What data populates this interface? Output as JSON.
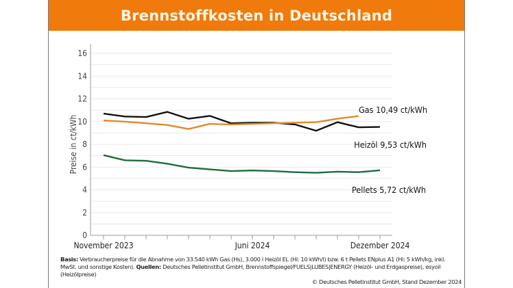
{
  "title": "Brennstoffkosten in Deutschland",
  "chart_data": {
    "type": "line",
    "ylabel": "Preise in ct/kWh",
    "ylim": [
      0,
      16
    ],
    "yticks": [
      0,
      2,
      4,
      6,
      8,
      10,
      12,
      14,
      16
    ],
    "grid": true,
    "x": [
      "2023-11",
      "2023-12",
      "2024-01",
      "2024-02",
      "2024-03",
      "2024-04",
      "2024-05",
      "2024-06",
      "2024-07",
      "2024-08",
      "2024-09",
      "2024-10",
      "2024-11",
      "2024-12"
    ],
    "xtick_labels": [
      {
        "month": "2023-11",
        "label": "November 2023"
      },
      {
        "month": "2024-06",
        "label": "Juni 2024"
      },
      {
        "month": "2024-12",
        "label": "Dezember 2024"
      }
    ],
    "series": [
      {
        "name": "Heizöl",
        "label": "Heizöl  9,53 ct/kWh",
        "color": "#111111",
        "values": [
          10.7,
          10.45,
          10.4,
          10.85,
          10.25,
          10.5,
          9.85,
          9.9,
          9.9,
          9.75,
          9.2,
          9.95,
          9.5,
          9.53
        ]
      },
      {
        "name": "Gas",
        "label": "Gas 10,49 ct/kWh",
        "color": "#e0892a",
        "values": [
          10.1,
          10.0,
          9.85,
          9.7,
          9.35,
          9.8,
          9.75,
          9.8,
          9.85,
          9.9,
          9.95,
          10.25,
          10.49,
          null
        ]
      },
      {
        "name": "Pellets",
        "label": "Pellets  5,72 ct/kWh",
        "color": "#1e6b3a",
        "values": [
          7.05,
          6.6,
          6.55,
          6.3,
          5.95,
          5.8,
          5.65,
          5.7,
          5.65,
          5.55,
          5.5,
          5.6,
          5.55,
          5.72
        ]
      }
    ]
  },
  "footnote": {
    "basis_label": "Basis:",
    "basis_text": " Verbraucherpreise für die Abnahme von 33.540 kWh Gas (Hs), 3.000 l Heizöl EL (Hi: 10 kWh/l) bzw. 6 t Pellets ENplus A1 (Hi: 5 kWh/kg, inkl. MwSt. und sonstige Kosten). ",
    "sources_label": "Quellen:",
    "sources_text": " Deutsches Pelletinstitut GmbH, Brennstoffspiegel/FUELS|LUBES|ENERGY (Heizöl- und Erdgaspreise), esyoil (Heizölpreise)",
    "copyright": "© Deutsches Pelletinstitut GmbH, Stand Dezember 2024"
  }
}
